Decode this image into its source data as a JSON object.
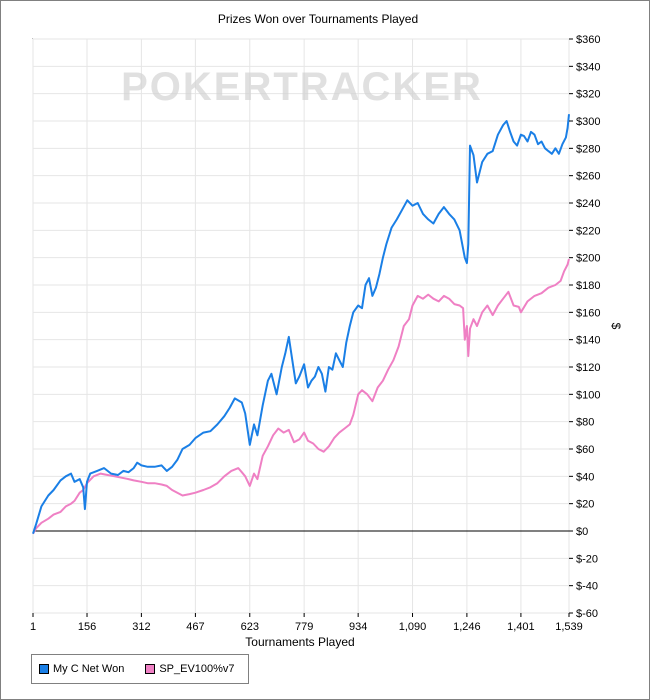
{
  "chart_data": {
    "type": "line",
    "title": "Prizes Won over Tournaments Played",
    "xlabel": "Tournaments Played",
    "ylabel": "$",
    "watermark": "POKERTRACKER",
    "xlim": [
      1,
      1539
    ],
    "ylim": [
      -60,
      360
    ],
    "x_ticks": [
      1,
      156,
      312,
      467,
      623,
      779,
      934,
      1090,
      1246,
      1401,
      1539
    ],
    "x_tick_labels": [
      "1",
      "156",
      "312",
      "467",
      "623",
      "779",
      "934",
      "1,090",
      "1,246",
      "1,401",
      "1,539"
    ],
    "y_ticks": [
      -60,
      -40,
      -20,
      0,
      20,
      40,
      60,
      80,
      100,
      120,
      140,
      160,
      180,
      200,
      220,
      240,
      260,
      280,
      300,
      320,
      340,
      360
    ],
    "y_tick_labels": [
      "$-60",
      "$-40",
      "$-20",
      "$0",
      "$20",
      "$40",
      "$60",
      "$80",
      "$100",
      "$120",
      "$140",
      "$160",
      "$180",
      "$200",
      "$220",
      "$240",
      "$260",
      "$280",
      "$300",
      "$320",
      "$340",
      "$360"
    ],
    "grid": true,
    "legend_position": "bottom-left",
    "series": [
      {
        "name": "My C Net Won",
        "color": "#1a7fe6",
        "x": [
          1,
          10,
          25,
          45,
          60,
          80,
          95,
          110,
          120,
          135,
          145,
          150,
          156,
          165,
          185,
          205,
          225,
          245,
          260,
          275,
          290,
          300,
          312,
          330,
          350,
          370,
          385,
          400,
          415,
          430,
          450,
          467,
          490,
          510,
          530,
          550,
          565,
          580,
          600,
          610,
          623,
          635,
          645,
          660,
          675,
          685,
          700,
          715,
          725,
          735,
          745,
          755,
          765,
          779,
          790,
          800,
          810,
          820,
          830,
          840,
          850,
          860,
          870,
          880,
          890,
          900,
          910,
          920,
          934,
          945,
          955,
          965,
          975,
          985,
          995,
          1005,
          1015,
          1030,
          1045,
          1060,
          1075,
          1090,
          1105,
          1120,
          1135,
          1150,
          1165,
          1180,
          1195,
          1210,
          1225,
          1240,
          1246,
          1250,
          1255,
          1265,
          1275,
          1290,
          1305,
          1320,
          1335,
          1350,
          1360,
          1370,
          1380,
          1390,
          1401,
          1410,
          1420,
          1430,
          1440,
          1450,
          1460,
          1470,
          1480,
          1490,
          1500,
          1510,
          1520,
          1530,
          1535,
          1539
        ],
        "values": [
          -2,
          5,
          18,
          26,
          30,
          37,
          40,
          42,
          36,
          38,
          32,
          16,
          36,
          42,
          44,
          46,
          42,
          41,
          44,
          43,
          46,
          50,
          48,
          47,
          47,
          48,
          44,
          47,
          52,
          60,
          63,
          68,
          72,
          73,
          78,
          84,
          90,
          97,
          94,
          86,
          63,
          78,
          70,
          92,
          110,
          115,
          100,
          120,
          130,
          142,
          125,
          108,
          113,
          122,
          105,
          110,
          113,
          120,
          115,
          102,
          120,
          118,
          130,
          125,
          120,
          138,
          150,
          160,
          165,
          163,
          180,
          185,
          172,
          178,
          188,
          200,
          210,
          222,
          228,
          235,
          242,
          238,
          240,
          232,
          228,
          225,
          232,
          237,
          232,
          228,
          220,
          200,
          196,
          210,
          282,
          275,
          255,
          270,
          276,
          278,
          290,
          297,
          300,
          292,
          285,
          282,
          290,
          289,
          285,
          292,
          290,
          283,
          285,
          280,
          278,
          276,
          280,
          276,
          283,
          288,
          295,
          305
        ]
      },
      {
        "name": "SP_EV100%v7",
        "color": "#ef80c4",
        "x": [
          1,
          10,
          25,
          45,
          60,
          80,
          95,
          110,
          120,
          135,
          145,
          156,
          175,
          195,
          215,
          235,
          255,
          275,
          290,
          312,
          330,
          350,
          370,
          385,
          400,
          415,
          430,
          450,
          467,
          490,
          510,
          530,
          550,
          570,
          590,
          600,
          610,
          623,
          635,
          645,
          660,
          675,
          690,
          705,
          720,
          735,
          750,
          765,
          779,
          790,
          805,
          820,
          835,
          850,
          865,
          880,
          895,
          910,
          920,
          934,
          945,
          960,
          975,
          990,
          1005,
          1020,
          1035,
          1050,
          1065,
          1080,
          1090,
          1105,
          1120,
          1135,
          1150,
          1165,
          1180,
          1195,
          1210,
          1225,
          1235,
          1240,
          1246,
          1250,
          1255,
          1265,
          1275,
          1290,
          1305,
          1320,
          1335,
          1350,
          1365,
          1380,
          1395,
          1401,
          1420,
          1440,
          1460,
          1480,
          1500,
          1515,
          1525,
          1535,
          1539
        ],
        "values": [
          -2,
          2,
          6,
          9,
          12,
          14,
          18,
          20,
          22,
          28,
          30,
          35,
          40,
          42,
          41,
          40,
          39,
          38,
          37,
          36,
          35,
          35,
          34,
          33,
          30,
          28,
          26,
          27,
          28,
          30,
          32,
          35,
          40,
          44,
          46,
          43,
          40,
          33,
          42,
          38,
          55,
          62,
          70,
          75,
          72,
          74,
          65,
          67,
          72,
          66,
          64,
          60,
          58,
          62,
          68,
          72,
          75,
          78,
          85,
          100,
          103,
          100,
          95,
          105,
          110,
          118,
          125,
          135,
          150,
          155,
          165,
          172,
          170,
          173,
          170,
          168,
          172,
          170,
          166,
          165,
          163,
          140,
          150,
          128,
          148,
          155,
          150,
          160,
          165,
          158,
          165,
          170,
          175,
          165,
          164,
          160,
          168,
          172,
          174,
          178,
          180,
          183,
          190,
          195,
          199
        ]
      }
    ]
  }
}
